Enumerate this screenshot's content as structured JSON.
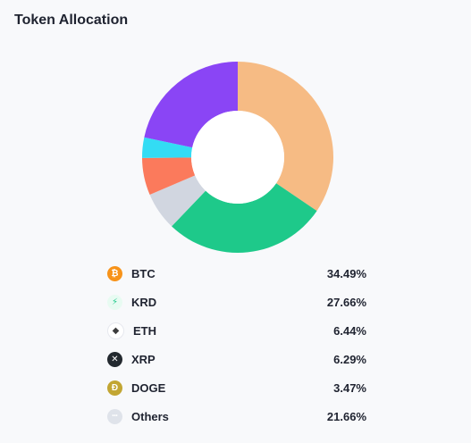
{
  "title": "Token Allocation",
  "chart_data": {
    "type": "pie",
    "title": "Token Allocation",
    "donut": true,
    "start_angle_deg": 0,
    "direction": "clockwise",
    "slices": [
      {
        "label": "BTC",
        "value": 34.49,
        "display": "34.49%",
        "color": "#f6bb84"
      },
      {
        "label": "KRD",
        "value": 27.66,
        "display": "27.66%",
        "color": "#1ec98a"
      },
      {
        "label": "ETH",
        "value": 6.44,
        "display": "6.44%",
        "color": "#d1d6e0"
      },
      {
        "label": "XRP",
        "value": 6.29,
        "display": "6.29%",
        "color": "#fb7a5c"
      },
      {
        "label": "DOGE",
        "value": 3.47,
        "display": "3.47%",
        "color": "#33dcf4"
      },
      {
        "label": "Others",
        "value": 21.66,
        "display": "21.66%",
        "color": "#8a45f5"
      }
    ]
  },
  "legend_icons": [
    {
      "name": "bitcoin-icon",
      "glyph": "₿",
      "bg": "#f7931a",
      "fg": "#ffffff"
    },
    {
      "name": "krd-icon",
      "glyph": "⚡",
      "bg": "#e8fbf2",
      "fg": "#1ec98a"
    },
    {
      "name": "ethereum-icon",
      "glyph": "◆",
      "bg": "#ffffff",
      "fg": "#3c3c3d"
    },
    {
      "name": "xrp-icon",
      "glyph": "✕",
      "bg": "#23292f",
      "fg": "#ffffff"
    },
    {
      "name": "dogecoin-icon",
      "glyph": "Ð",
      "bg": "#c2a633",
      "fg": "#ffffff"
    },
    {
      "name": "others-icon",
      "glyph": "•••",
      "bg": "#dfe3ea",
      "fg": "#ffffff"
    }
  ]
}
